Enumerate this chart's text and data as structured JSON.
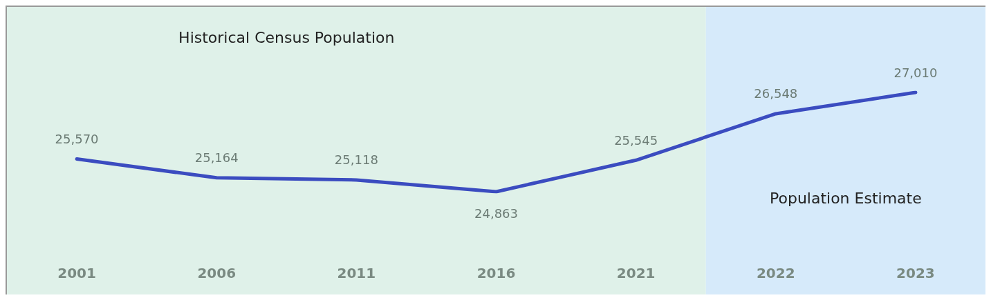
{
  "chart_data": {
    "type": "line",
    "categories": [
      "2001",
      "2006",
      "2011",
      "2016",
      "2021",
      "2022",
      "2023"
    ],
    "series": [
      {
        "color": "#3b4cc0",
        "values": [
          25570,
          25164,
          25118,
          24863,
          25545,
          26548,
          27010
        ],
        "value_labels": [
          "25,570",
          "25,164",
          "25,118",
          "24,863",
          "25,545",
          "26,548",
          "27,010"
        ]
      }
    ],
    "marker": "none",
    "line_style": "solid",
    "grid": false,
    "bands": [
      {
        "axis": "x",
        "from": "2001",
        "to": "2021",
        "label": "Historical Census Population",
        "color": "#dff1e9"
      },
      {
        "axis": "x",
        "from": "2022",
        "to": "2023",
        "label": "Population Estimate",
        "color": "#d6eafa"
      }
    ]
  }
}
